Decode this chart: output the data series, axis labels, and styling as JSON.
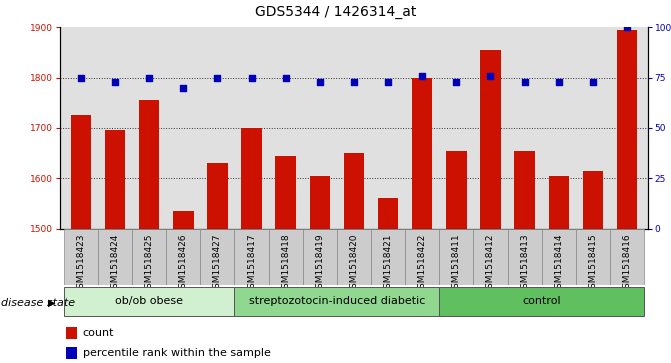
{
  "title": "GDS5344 / 1426314_at",
  "samples": [
    "GSM1518423",
    "GSM1518424",
    "GSM1518425",
    "GSM1518426",
    "GSM1518427",
    "GSM1518417",
    "GSM1518418",
    "GSM1518419",
    "GSM1518420",
    "GSM1518421",
    "GSM1518422",
    "GSM1518411",
    "GSM1518412",
    "GSM1518413",
    "GSM1518414",
    "GSM1518415",
    "GSM1518416"
  ],
  "counts": [
    1725,
    1695,
    1755,
    1535,
    1630,
    1700,
    1645,
    1605,
    1650,
    1560,
    1800,
    1655,
    1855,
    1655,
    1605,
    1615,
    1895
  ],
  "percentiles": [
    75,
    73,
    75,
    70,
    75,
    75,
    75,
    73,
    73,
    73,
    76,
    73,
    76,
    73,
    73,
    73,
    100
  ],
  "groups": [
    {
      "label": "ob/ob obese",
      "start": 0,
      "end": 5,
      "color": "#d0f0d0"
    },
    {
      "label": "streptozotocin-induced diabetic",
      "start": 5,
      "end": 11,
      "color": "#90d890"
    },
    {
      "label": "control",
      "start": 11,
      "end": 17,
      "color": "#60c060"
    }
  ],
  "ylim_left": [
    1500,
    1900
  ],
  "ylim_right": [
    0,
    100
  ],
  "yticks_left": [
    1500,
    1600,
    1700,
    1800,
    1900
  ],
  "yticks_right": [
    0,
    25,
    50,
    75,
    100
  ],
  "bar_color": "#cc1100",
  "dot_color": "#0000bb",
  "grid_color": "#333333",
  "plot_bg_color": "#e0e0e0",
  "xtick_bg_color": "#cccccc",
  "legend_count_color": "#cc1100",
  "legend_dot_color": "#0000bb",
  "xlabel_group": "disease state",
  "title_fontsize": 10,
  "tick_fontsize": 6.5,
  "group_fontsize": 8,
  "legend_fontsize": 8
}
